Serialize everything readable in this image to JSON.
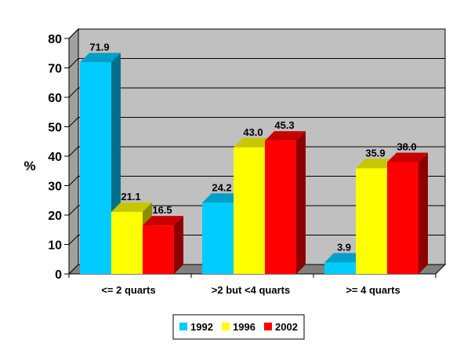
{
  "chart_data": {
    "type": "bar",
    "style": "3d-clustered-column",
    "ylabel": "%",
    "ylim": [
      0,
      80
    ],
    "yticks": [
      0,
      10,
      20,
      30,
      40,
      50,
      60,
      70,
      80
    ],
    "grid": true,
    "legend_position": "bottom",
    "categories": [
      "<= 2 quarts",
      ">2 but <4 quarts",
      ">= 4 quarts"
    ],
    "series": [
      {
        "name": "1992",
        "color": "#00ccff",
        "values": [
          71.9,
          24.2,
          3.9
        ],
        "labels": [
          "71.9",
          "24.2",
          "3.9"
        ]
      },
      {
        "name": "1996",
        "color": "#ffff00",
        "values": [
          21.1,
          43.0,
          35.9
        ],
        "labels": [
          "21.1",
          "43.0",
          "35.9"
        ]
      },
      {
        "name": "2002",
        "color": "#ff0000",
        "values": [
          16.5,
          45.3,
          38.0
        ],
        "labels": [
          "16.5",
          "45.3",
          "38.0"
        ]
      }
    ],
    "colors": {
      "plot_back_wall": "#c0c0c0",
      "plot_floor": "#808080",
      "gridline": "#000000"
    }
  }
}
